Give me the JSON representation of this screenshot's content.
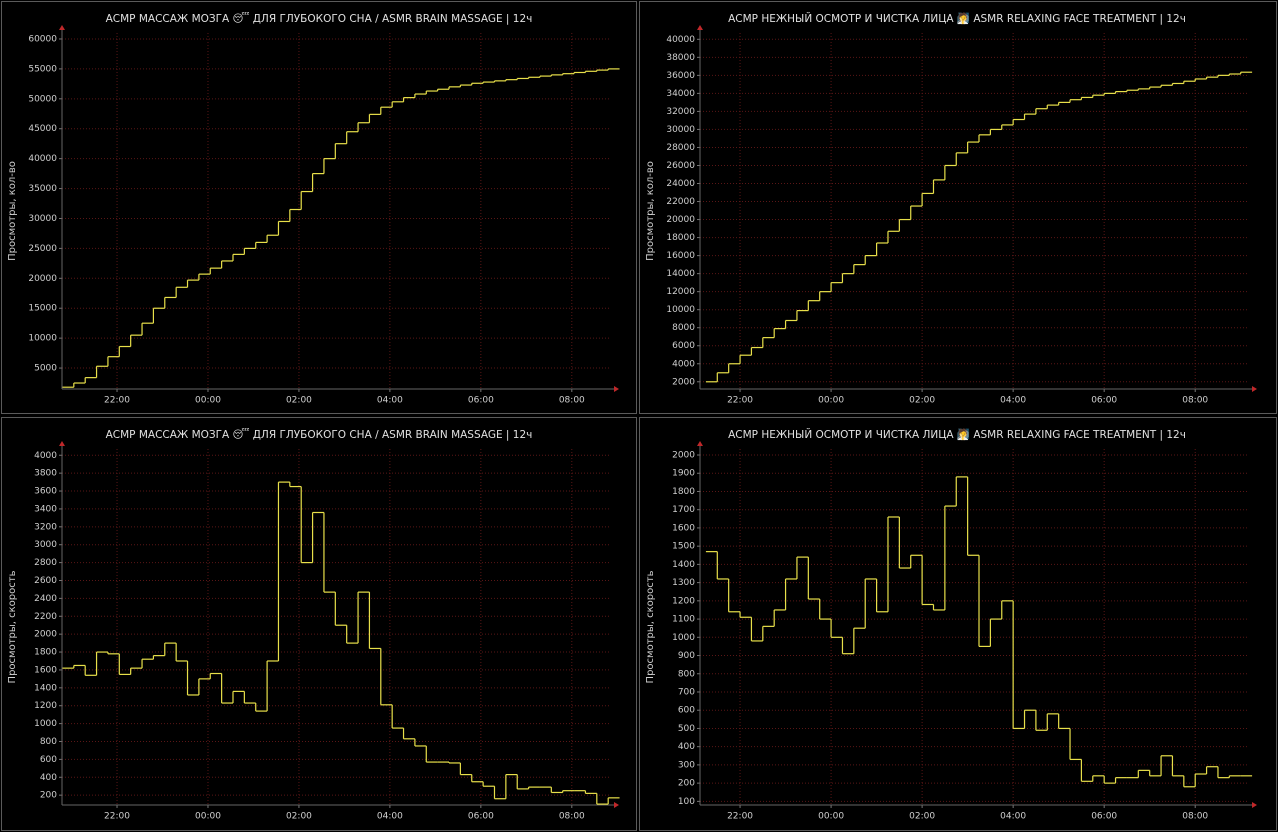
{
  "chart_data": [
    {
      "type": "line",
      "step": true,
      "title": "АСМР МАССАЖ МОЗГА 😴 ДЛЯ ГЛУБОКОГО СНА  / ASMR BRAIN MASSAGE | 12ч",
      "ylabel": "Просмотры, кол-во",
      "color": "#e8e04a",
      "grid": true,
      "xlim": [
        20.79,
        32.84
      ],
      "ylim": [
        1500,
        61000
      ],
      "xticks": [
        {
          "value": 22,
          "label": "22:00"
        },
        {
          "value": 24,
          "label": "00:00"
        },
        {
          "value": 26,
          "label": "02:00"
        },
        {
          "value": 28,
          "label": "04:00"
        },
        {
          "value": 30,
          "label": "06:00"
        },
        {
          "value": 32,
          "label": "08:00"
        }
      ],
      "yticks": [
        5000,
        10000,
        15000,
        20000,
        25000,
        30000,
        35000,
        40000,
        45000,
        50000,
        55000,
        60000
      ],
      "x": [
        20.8,
        21.05,
        21.3,
        21.55,
        21.8,
        22.05,
        22.3,
        22.55,
        22.8,
        23.05,
        23.3,
        23.55,
        23.8,
        24.05,
        24.3,
        24.55,
        24.8,
        25.05,
        25.3,
        25.55,
        25.8,
        26.05,
        26.3,
        26.55,
        26.8,
        27.05,
        27.3,
        27.55,
        27.8,
        28.05,
        28.3,
        28.55,
        28.8,
        29.05,
        29.3,
        29.55,
        29.8,
        30.05,
        30.3,
        30.55,
        30.8,
        31.05,
        31.3,
        31.55,
        31.8,
        32.05,
        32.3,
        32.55,
        32.8
      ],
      "values": [
        1800,
        2500,
        3400,
        5300,
        6900,
        8600,
        10500,
        12500,
        15000,
        16800,
        18500,
        19700,
        20700,
        21700,
        22900,
        24000,
        25000,
        26000,
        27200,
        29500,
        31500,
        34500,
        37500,
        40000,
        42500,
        44500,
        46000,
        47400,
        48600,
        49500,
        50200,
        50800,
        51300,
        51600,
        52000,
        52300,
        52600,
        52800,
        53000,
        53200,
        53400,
        53600,
        53800,
        54000,
        54200,
        54400,
        54600,
        54800,
        55000
      ]
    },
    {
      "type": "line",
      "step": true,
      "title": "АСМР НЕЖНЫЙ ОСМОТР И ЧИСТКА ЛИЦА 🧖 ASMR  RELAXING FACE TREATMENT | 12ч",
      "ylabel": "Просмотры, кол-во",
      "color": "#e8e04a",
      "grid": true,
      "xlim": [
        21.12,
        33.16
      ],
      "ylim": [
        1200,
        40700
      ],
      "xticks": [
        {
          "value": 22,
          "label": "22:00"
        },
        {
          "value": 24,
          "label": "00:00"
        },
        {
          "value": 26,
          "label": "02:00"
        },
        {
          "value": 28,
          "label": "04:00"
        },
        {
          "value": 30,
          "label": "06:00"
        },
        {
          "value": 32,
          "label": "08:00"
        }
      ],
      "yticks": [
        2000,
        4000,
        6000,
        8000,
        10000,
        12000,
        14000,
        16000,
        18000,
        20000,
        22000,
        24000,
        26000,
        28000,
        30000,
        32000,
        34000,
        36000,
        38000,
        40000
      ],
      "x": [
        21.25,
        21.5,
        21.75,
        22.0,
        22.25,
        22.5,
        22.75,
        23.0,
        23.25,
        23.5,
        23.75,
        24.0,
        24.25,
        24.5,
        24.75,
        25.0,
        25.25,
        25.5,
        25.75,
        26.0,
        26.25,
        26.5,
        26.75,
        27.0,
        27.25,
        27.5,
        27.75,
        28.0,
        28.25,
        28.5,
        28.75,
        29.0,
        29.25,
        29.5,
        29.75,
        30.0,
        30.25,
        30.5,
        30.75,
        31.0,
        31.25,
        31.5,
        31.75,
        32.0,
        32.25,
        32.5,
        32.75,
        33.0
      ],
      "values": [
        2000,
        3000,
        4000,
        4950,
        5800,
        6900,
        7900,
        8800,
        9900,
        11000,
        12000,
        13000,
        14000,
        15000,
        16000,
        17400,
        18700,
        20000,
        21500,
        22900,
        24400,
        26000,
        27400,
        28600,
        29400,
        30000,
        30500,
        31100,
        31700,
        32300,
        32700,
        33000,
        33300,
        33550,
        33800,
        34000,
        34200,
        34350,
        34500,
        34700,
        34900,
        35100,
        35350,
        35600,
        35800,
        36000,
        36150,
        36350
      ]
    },
    {
      "type": "line",
      "step": true,
      "title": "АСМР МАССАЖ МОЗГА 😴 ДЛЯ ГЛУБОКОГО СНА  / ASMR BRAIN MASSAGE | 12ч",
      "ylabel": "Просмотры, скорость",
      "color": "#e8e04a",
      "grid": true,
      "xlim": [
        20.79,
        32.84
      ],
      "ylim": [
        90,
        4070
      ],
      "xticks": [
        {
          "value": 22,
          "label": "22:00"
        },
        {
          "value": 24,
          "label": "00:00"
        },
        {
          "value": 26,
          "label": "02:00"
        },
        {
          "value": 28,
          "label": "04:00"
        },
        {
          "value": 30,
          "label": "06:00"
        },
        {
          "value": 32,
          "label": "08:00"
        }
      ],
      "yticks": [
        200,
        400,
        600,
        800,
        1000,
        1200,
        1400,
        1600,
        1800,
        2000,
        2200,
        2400,
        2600,
        2800,
        3000,
        3200,
        3400,
        3600,
        3800,
        4000
      ],
      "x": [
        20.8,
        21.05,
        21.3,
        21.55,
        21.8,
        22.05,
        22.3,
        22.55,
        22.8,
        23.05,
        23.3,
        23.55,
        23.8,
        24.05,
        24.3,
        24.55,
        24.8,
        25.05,
        25.3,
        25.55,
        25.8,
        26.05,
        26.3,
        26.55,
        26.8,
        27.05,
        27.3,
        27.55,
        27.8,
        28.05,
        28.3,
        28.55,
        28.8,
        29.05,
        29.3,
        29.55,
        29.8,
        30.05,
        30.3,
        30.55,
        30.8,
        31.05,
        31.3,
        31.55,
        31.8,
        32.05,
        32.3,
        32.55,
        32.8
      ],
      "values": [
        1620,
        1650,
        1540,
        1800,
        1780,
        1550,
        1620,
        1720,
        1760,
        1900,
        1700,
        1320,
        1500,
        1560,
        1230,
        1360,
        1230,
        1140,
        1700,
        3700,
        3650,
        2800,
        3360,
        2470,
        2100,
        1900,
        2470,
        1840,
        1210,
        950,
        830,
        750,
        570,
        570,
        560,
        430,
        350,
        300,
        160,
        430,
        270,
        290,
        290,
        230,
        250,
        250,
        220,
        100,
        170
      ]
    },
    {
      "type": "line",
      "step": true,
      "title": "АСМР НЕЖНЫЙ ОСМОТР И ЧИСТКА ЛИЦА 🧖 ASMR  RELAXING FACE TREATMENT | 12ч",
      "ylabel": "Просмотры, скорость",
      "color": "#e8e04a",
      "grid": true,
      "xlim": [
        21.12,
        33.16
      ],
      "ylim": [
        80,
        2033
      ],
      "xticks": [
        {
          "value": 22,
          "label": "22:00"
        },
        {
          "value": 24,
          "label": "00:00"
        },
        {
          "value": 26,
          "label": "02:00"
        },
        {
          "value": 28,
          "label": "04:00"
        },
        {
          "value": 30,
          "label": "06:00"
        },
        {
          "value": 32,
          "label": "08:00"
        }
      ],
      "yticks": [
        100,
        200,
        300,
        400,
        500,
        600,
        700,
        800,
        900,
        1000,
        1100,
        1200,
        1300,
        1400,
        1500,
        1600,
        1700,
        1800,
        1900,
        2000
      ],
      "x": [
        21.25,
        21.5,
        21.75,
        22.0,
        22.25,
        22.5,
        22.75,
        23.0,
        23.25,
        23.5,
        23.75,
        24.0,
        24.25,
        24.5,
        24.75,
        25.0,
        25.25,
        25.5,
        25.75,
        26.0,
        26.25,
        26.5,
        26.75,
        27.0,
        27.25,
        27.5,
        27.75,
        28.0,
        28.25,
        28.5,
        28.75,
        29.0,
        29.25,
        29.5,
        29.75,
        30.0,
        30.25,
        30.5,
        30.75,
        31.0,
        31.25,
        31.5,
        31.75,
        32.0,
        32.25,
        32.5,
        32.75,
        33.0
      ],
      "values": [
        1470,
        1320,
        1140,
        1110,
        980,
        1060,
        1150,
        1320,
        1440,
        1210,
        1100,
        1000,
        910,
        1050,
        1320,
        1140,
        1660,
        1380,
        1450,
        1180,
        1150,
        1720,
        1880,
        1450,
        950,
        1100,
        1200,
        500,
        600,
        490,
        580,
        500,
        330,
        210,
        240,
        200,
        230,
        230,
        270,
        240,
        350,
        240,
        180,
        250,
        290,
        230,
        240,
        240
      ]
    }
  ]
}
